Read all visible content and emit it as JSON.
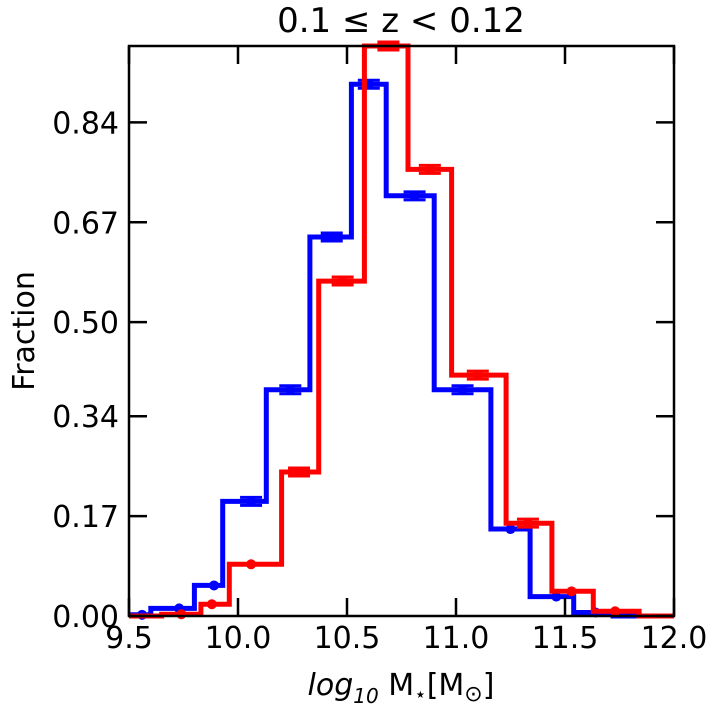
{
  "chart_data": {
    "type": "step-histogram",
    "title": "0.1 ≤ z < 0.12",
    "xlabel": "log10 M⋆[M⊙]",
    "ylabel": "Fraction",
    "xlim": [
      9.5,
      12.0
    ],
    "ylim": [
      0.0,
      0.97
    ],
    "x_ticks": [
      9.5,
      10.0,
      10.5,
      11.0,
      11.5,
      12.0
    ],
    "x_tick_labels": [
      "9.5",
      "10.0",
      "10.5",
      "11.0",
      "11.5",
      "12.0"
    ],
    "y_ticks": [
      0.0,
      0.17,
      0.34,
      0.5,
      0.67,
      0.84
    ],
    "y_tick_labels": [
      "0.00",
      "0.17",
      "0.34",
      "0.50",
      "0.67",
      "0.84"
    ],
    "grid": false,
    "series": [
      {
        "color": "#0000ff",
        "bins": [
          {
            "x0": 9.5,
            "x1": 9.6,
            "y": 0.002
          },
          {
            "x0": 9.6,
            "x1": 9.8,
            "y": 0.013
          },
          {
            "x0": 9.8,
            "x1": 9.93,
            "y": 0.052
          },
          {
            "x0": 9.93,
            "x1": 10.13,
            "y": 0.195
          },
          {
            "x0": 10.13,
            "x1": 10.33,
            "y": 0.385
          },
          {
            "x0": 10.33,
            "x1": 10.52,
            "y": 0.645
          },
          {
            "x0": 10.52,
            "x1": 10.68,
            "y": 0.905
          },
          {
            "x0": 10.68,
            "x1": 10.9,
            "y": 0.715
          },
          {
            "x0": 10.9,
            "x1": 11.16,
            "y": 0.385
          },
          {
            "x0": 11.16,
            "x1": 11.34,
            "y": 0.148
          },
          {
            "x0": 11.34,
            "x1": 11.54,
            "y": 0.033
          },
          {
            "x0": 11.54,
            "x1": 11.72,
            "y": 0.006
          },
          {
            "x0": 11.72,
            "x1": 12.0,
            "y": 0.0
          }
        ],
        "points": [
          {
            "x": 9.56,
            "y": 0.002
          },
          {
            "x": 9.73,
            "y": 0.013
          },
          {
            "x": 9.89,
            "y": 0.052
          },
          {
            "x": 10.06,
            "y": 0.195
          },
          {
            "x": 10.24,
            "y": 0.385
          },
          {
            "x": 10.43,
            "y": 0.645
          },
          {
            "x": 10.6,
            "y": 0.905
          },
          {
            "x": 10.81,
            "y": 0.715
          },
          {
            "x": 11.03,
            "y": 0.385
          },
          {
            "x": 11.25,
            "y": 0.148
          },
          {
            "x": 11.46,
            "y": 0.033
          },
          {
            "x": 11.64,
            "y": 0.006
          }
        ]
      },
      {
        "color": "#ff0000",
        "bins": [
          {
            "x0": 9.5,
            "x1": 9.65,
            "y": 0.0
          },
          {
            "x0": 9.65,
            "x1": 9.83,
            "y": 0.003
          },
          {
            "x0": 9.83,
            "x1": 9.96,
            "y": 0.02
          },
          {
            "x0": 9.96,
            "x1": 10.2,
            "y": 0.088
          },
          {
            "x0": 10.2,
            "x1": 10.37,
            "y": 0.245
          },
          {
            "x0": 10.37,
            "x1": 10.58,
            "y": 0.57
          },
          {
            "x0": 10.58,
            "x1": 10.78,
            "y": 0.97
          },
          {
            "x0": 10.78,
            "x1": 10.98,
            "y": 0.76
          },
          {
            "x0": 10.98,
            "x1": 11.23,
            "y": 0.41
          },
          {
            "x0": 11.23,
            "x1": 11.44,
            "y": 0.158
          },
          {
            "x0": 11.44,
            "x1": 11.63,
            "y": 0.042
          },
          {
            "x0": 11.63,
            "x1": 11.84,
            "y": 0.008
          },
          {
            "x0": 11.84,
            "x1": 12.0,
            "y": 0.0
          }
        ],
        "points": [
          {
            "x": 9.74,
            "y": 0.003
          },
          {
            "x": 9.88,
            "y": 0.02
          },
          {
            "x": 10.06,
            "y": 0.088
          },
          {
            "x": 10.28,
            "y": 0.245
          },
          {
            "x": 10.48,
            "y": 0.57
          },
          {
            "x": 10.69,
            "y": 0.97
          },
          {
            "x": 10.88,
            "y": 0.76
          },
          {
            "x": 11.1,
            "y": 0.41
          },
          {
            "x": 11.33,
            "y": 0.158
          },
          {
            "x": 11.53,
            "y": 0.042
          },
          {
            "x": 11.73,
            "y": 0.008
          }
        ]
      }
    ]
  }
}
